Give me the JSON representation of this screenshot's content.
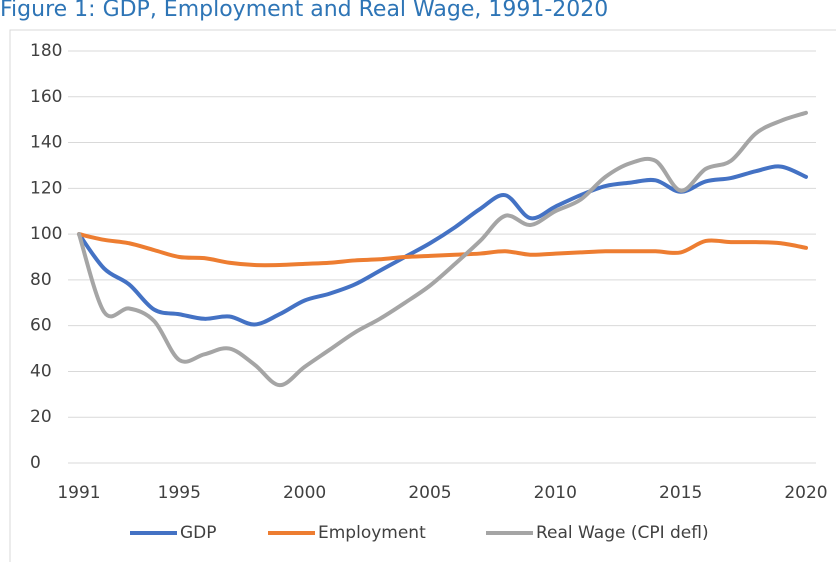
{
  "chart_data": {
    "type": "line",
    "title": "Figure 1: GDP, Employment and Real Wage, 1991-2020",
    "x": [
      1991,
      1992,
      1993,
      1994,
      1995,
      1996,
      1997,
      1998,
      1999,
      2000,
      2001,
      2002,
      2003,
      2004,
      2005,
      2006,
      2007,
      2008,
      2009,
      2010,
      2011,
      2012,
      2013,
      2014,
      2015,
      2016,
      2017,
      2018,
      2019,
      2020
    ],
    "series": [
      {
        "name": "GDP",
        "color": "#4472c4",
        "values": [
          100,
          85,
          78,
          67,
          65,
          63,
          64,
          60.5,
          65,
          71,
          74,
          78,
          84,
          90,
          96,
          103,
          111,
          117,
          107,
          112,
          117,
          121,
          122.5,
          123.5,
          118.5,
          123,
          124.5,
          127.5,
          129.5,
          125
        ]
      },
      {
        "name": "Employment",
        "color": "#ed7d31",
        "values": [
          100,
          97.5,
          96,
          93,
          90,
          89.5,
          87.5,
          86.5,
          86.5,
          87,
          87.5,
          88.5,
          89,
          90,
          90.5,
          91,
          91.5,
          92.5,
          91,
          91.5,
          92,
          92.5,
          92.5,
          92.5,
          92,
          97,
          96.5,
          96.5,
          96,
          94
        ]
      },
      {
        "name": "Real Wage (CPI defl)",
        "color": "#a5a5a5",
        "values": [
          100,
          66,
          67.5,
          62,
          45,
          47.5,
          50,
          43,
          34,
          42,
          49.5,
          57,
          63,
          70,
          77.5,
          87,
          97,
          108,
          104,
          110,
          115,
          125,
          131,
          132,
          119,
          128.5,
          132,
          144,
          149.5,
          153
        ]
      }
    ],
    "xlim": [
      1991,
      2020
    ],
    "xticks": [
      1991,
      1995,
      2000,
      2005,
      2010,
      2015,
      2020
    ],
    "ylim": [
      0,
      180
    ],
    "yticks": [
      0,
      20,
      40,
      60,
      80,
      100,
      120,
      140,
      160,
      180
    ],
    "grid": true,
    "legend": "bottom"
  }
}
